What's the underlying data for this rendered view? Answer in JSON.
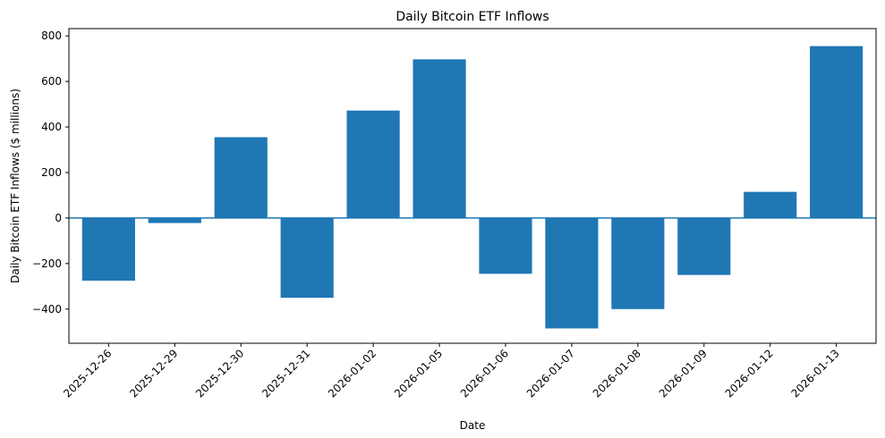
{
  "chart_data": {
    "type": "bar",
    "title": "Daily Bitcoin ETF Inflows",
    "xlabel": "Date",
    "ylabel": "Daily Bitcoin ETF Inflows ($ millions)",
    "categories": [
      "2025-12-26",
      "2025-12-29",
      "2025-12-30",
      "2025-12-31",
      "2026-01-02",
      "2026-01-05",
      "2026-01-06",
      "2026-01-07",
      "2026-01-08",
      "2026-01-09",
      "2026-01-12",
      "2026-01-13"
    ],
    "values": [
      -275,
      -22,
      355,
      -350,
      472,
      697,
      -245,
      -485,
      -400,
      -250,
      115,
      755
    ],
    "ylim": [
      -550,
      832
    ],
    "yticks": [
      -400,
      -200,
      0,
      200,
      400,
      600,
      800
    ],
    "zero_line": true,
    "grid": false,
    "colors": {
      "bar": "#1f77b4",
      "zero_line": "#1f77b4",
      "axis": "#000000"
    }
  }
}
